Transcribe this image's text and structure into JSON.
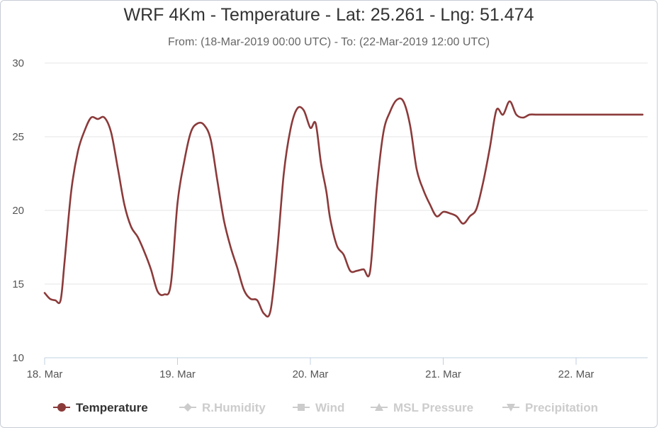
{
  "chart_data": {
    "type": "line",
    "title": "WRF 4Km - Temperature - Lat: 25.261 - Lng: 51.474",
    "subtitle": "From: (18-Mar-2019 00:00 UTC) - To: (22-Mar-2019 12:00 UTC)",
    "xlabel": "",
    "ylabel": "",
    "x_ticks": [
      "18. Mar",
      "19. Mar",
      "20. Mar",
      "21. Mar",
      "22. Mar"
    ],
    "y_ticks": [
      "10",
      "15",
      "20",
      "25",
      "30"
    ],
    "ylim": [
      10,
      30
    ],
    "xlim_days": [
      0,
      4.5
    ],
    "grid": "horizontal",
    "legend_position": "bottom",
    "series": [
      {
        "name": "Temperature",
        "color": "#8b3a3a",
        "x_days": [
          0.0,
          0.04,
          0.08,
          0.12,
          0.15,
          0.2,
          0.25,
          0.3,
          0.35,
          0.4,
          0.45,
          0.5,
          0.55,
          0.6,
          0.65,
          0.7,
          0.75,
          0.8,
          0.85,
          0.9,
          0.95,
          1.0,
          1.05,
          1.1,
          1.15,
          1.2,
          1.25,
          1.3,
          1.35,
          1.4,
          1.45,
          1.5,
          1.55,
          1.6,
          1.65,
          1.7,
          1.75,
          1.8,
          1.85,
          1.9,
          1.95,
          2.0,
          2.04,
          2.08,
          2.12,
          2.15,
          2.2,
          2.25,
          2.3,
          2.35,
          2.4,
          2.45,
          2.5,
          2.55,
          2.6,
          2.65,
          2.7,
          2.75,
          2.8,
          2.85,
          2.9,
          2.95,
          3.0,
          3.05,
          3.1,
          3.15,
          3.2,
          3.25,
          3.3,
          3.35,
          3.4,
          3.45,
          3.5,
          3.55,
          3.6,
          3.65,
          3.7,
          3.75,
          3.8,
          3.85,
          3.9,
          3.95,
          4.0,
          4.05,
          4.1,
          4.15,
          4.2,
          4.25,
          4.3,
          4.35,
          4.4,
          4.45,
          4.5
        ],
        "values": [
          14.4,
          14.0,
          13.9,
          13.9,
          16.5,
          21.3,
          24.0,
          25.4,
          26.3,
          26.2,
          26.3,
          25.3,
          22.9,
          20.4,
          18.9,
          18.2,
          17.2,
          16.0,
          14.5,
          14.3,
          15.0,
          20.5,
          23.3,
          25.3,
          25.9,
          25.8,
          24.8,
          22.0,
          19.3,
          17.5,
          16.1,
          14.6,
          14.0,
          13.9,
          13.0,
          13.2,
          17.2,
          22.5,
          25.5,
          26.9,
          26.8,
          25.6,
          25.9,
          23.2,
          21.3,
          19.4,
          17.6,
          17.0,
          15.9,
          15.9,
          16.0,
          15.9,
          21.5,
          25.3,
          26.7,
          27.5,
          27.4,
          25.8,
          22.8,
          21.4,
          20.4,
          19.6,
          19.9,
          19.8,
          19.6,
          19.1,
          19.6,
          20.1,
          21.9,
          24.2,
          26.8,
          26.5,
          27.4,
          26.5,
          26.3,
          26.5,
          26.5,
          26.5,
          26.5,
          26.5,
          26.5,
          26.5,
          26.5,
          26.5,
          26.5,
          26.5,
          26.5,
          26.5,
          26.5,
          26.5,
          26.5,
          26.5,
          26.5
        ]
      }
    ]
  },
  "legend": {
    "items": [
      {
        "label": "Temperature",
        "icon": "circle-marker-icon",
        "active": true
      },
      {
        "label": "R.Humidity",
        "icon": "diamond-marker-icon",
        "active": false
      },
      {
        "label": "Wind",
        "icon": "square-marker-icon",
        "active": false
      },
      {
        "label": "MSL Pressure",
        "icon": "triangle-marker-icon",
        "active": false
      },
      {
        "label": "Precipitation",
        "icon": "triangle-down-marker-icon",
        "active": false
      }
    ],
    "active_color": "#333333",
    "inactive_color": "#cccccc"
  }
}
